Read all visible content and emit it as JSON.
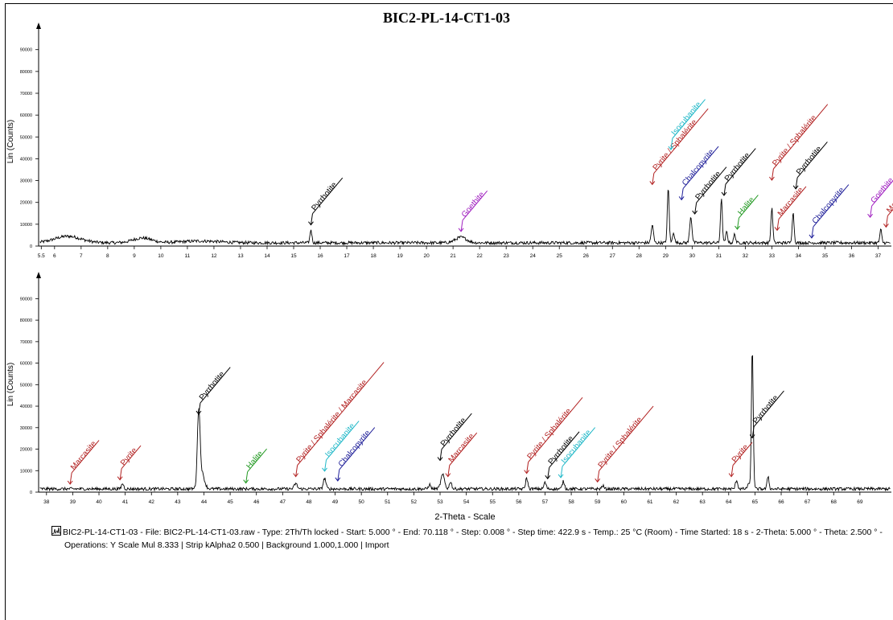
{
  "title": "BIC2-PL-14-CT1-03",
  "caption": {
    "line1": "BIC2-PL-14-CT1-03 - File: BIC2-PL-14-CT1-03.raw - Type: 2Th/Th locked - Start: 5.000 ° - End: 70.118 ° - Step: 0.008 ° - Step time: 422.9 s - Temp.: 25 °C (Room) - Time Started: 18 s - 2-Theta: 5.000 ° - Theta: 2.500 ° -",
    "line2": "Operations: Y Scale Mul  8.333 | Strip kAlpha2 0.500 | Background 1.000,1.000 | Import"
  },
  "chart_data": [
    {
      "type": "line",
      "ylabel": "Lin (Counts)",
      "xlabel": "",
      "ylim": [
        0,
        98000
      ],
      "xlim": [
        5.4,
        37.5
      ],
      "yticks": [
        0,
        10000,
        20000,
        30000,
        40000,
        50000,
        60000,
        70000,
        80000,
        90000
      ],
      "xticks": [
        "5.5",
        "6",
        "7",
        "8",
        "9",
        "10",
        "11",
        "12",
        "13",
        "14",
        "15",
        "16",
        "17",
        "18",
        "19",
        "20",
        "21",
        "22",
        "23",
        "24",
        "25",
        "26",
        "27",
        "28",
        "29",
        "30",
        "31",
        "32",
        "33",
        "34",
        "35",
        "36",
        "37"
      ],
      "xtick_values": [
        5.5,
        6,
        7,
        8,
        9,
        10,
        11,
        12,
        13,
        14,
        15,
        16,
        17,
        18,
        19,
        20,
        21,
        22,
        23,
        24,
        25,
        26,
        27,
        28,
        29,
        30,
        31,
        32,
        33,
        34,
        35,
        36,
        37
      ],
      "baseline": 1500,
      "humps": [
        [
          6.5,
          3000,
          0.7
        ],
        [
          9.3,
          2200,
          0.5
        ],
        [
          21.3,
          2500,
          0.3
        ],
        [
          11.5,
          800,
          1.0
        ]
      ],
      "peaks": [
        [
          15.65,
          6000,
          0.05
        ],
        [
          28.5,
          8000,
          0.06
        ],
        [
          29.1,
          25000,
          0.05
        ],
        [
          29.3,
          5000,
          0.05
        ],
        [
          29.95,
          12000,
          0.06
        ],
        [
          31.1,
          20000,
          0.05
        ],
        [
          31.3,
          5000,
          0.05
        ],
        [
          31.6,
          4000,
          0.05
        ],
        [
          33.0,
          16000,
          0.05
        ],
        [
          33.8,
          14000,
          0.05
        ],
        [
          37.1,
          6000,
          0.05
        ]
      ],
      "annotations": [
        {
          "label": "Pyrrhotite",
          "x": 15.65,
          "y": 7500,
          "color": "#000000"
        },
        {
          "label": "Goethite",
          "x": 21.3,
          "y": 4500,
          "color": "#a020c0"
        },
        {
          "label": "Pyrite / Sphalérite",
          "x": 28.5,
          "y": 26000,
          "color": "#b22222"
        },
        {
          "label": "Isocubanite",
          "x": 29.2,
          "y": 42000,
          "color": "#20b8c8"
        },
        {
          "label": "Chalcopyrite",
          "x": 29.6,
          "y": 19000,
          "color": "#1f1f99"
        },
        {
          "label": "Pyrrhotite",
          "x": 30.1,
          "y": 12500,
          "color": "#000000"
        },
        {
          "label": "Pyrrhotite",
          "x": 31.2,
          "y": 21000,
          "color": "#000000"
        },
        {
          "label": "Halite",
          "x": 31.7,
          "y": 5500,
          "color": "#229922"
        },
        {
          "label": "Pyrite / Sphalérite",
          "x": 33.0,
          "y": 28000,
          "color": "#b22222"
        },
        {
          "label": "Marcasite",
          "x": 33.2,
          "y": 5000,
          "color": "#b22222"
        },
        {
          "label": "Pyrrhotite",
          "x": 33.9,
          "y": 24000,
          "color": "#000000"
        },
        {
          "label": "Chalcopyrite",
          "x": 34.5,
          "y": 1500,
          "color": "#1f1f99"
        },
        {
          "label": "Goethite",
          "x": 36.7,
          "y": 11000,
          "color": "#a020c0"
        },
        {
          "label": "Marcasite",
          "x": 37.3,
          "y": 6500,
          "color": "#b22222"
        }
      ]
    },
    {
      "type": "line",
      "ylabel": "Lin (Counts)",
      "xlabel": "2-Theta - Scale",
      "ylim": [
        0,
        98000
      ],
      "xlim": [
        37.7,
        70.2
      ],
      "yticks": [
        0,
        10000,
        20000,
        30000,
        40000,
        50000,
        60000,
        70000,
        80000,
        90000
      ],
      "xticks": [
        "38",
        "39",
        "40",
        "41",
        "42",
        "43",
        "44",
        "45",
        "46",
        "47",
        "48",
        "49",
        "50",
        "51",
        "52",
        "53",
        "54",
        "55",
        "56",
        "57",
        "58",
        "59",
        "60",
        "61",
        "62",
        "63",
        "64",
        "65",
        "66",
        "67",
        "68",
        "69"
      ],
      "xtick_values": [
        38,
        39,
        40,
        41,
        42,
        43,
        44,
        45,
        46,
        47,
        48,
        49,
        50,
        51,
        52,
        53,
        54,
        55,
        56,
        57,
        58,
        59,
        60,
        61,
        62,
        63,
        64,
        65,
        66,
        67,
        68,
        69
      ],
      "baseline": 1500,
      "humps": [],
      "peaks": [
        [
          40.9,
          2500,
          0.06
        ],
        [
          43.8,
          33000,
          0.07
        ],
        [
          43.9,
          8000,
          0.15
        ],
        [
          47.5,
          2500,
          0.08
        ],
        [
          48.6,
          5000,
          0.07
        ],
        [
          52.6,
          2000,
          0.06
        ],
        [
          53.1,
          6500,
          0.1
        ],
        [
          53.4,
          3500,
          0.06
        ],
        [
          56.3,
          5000,
          0.06
        ],
        [
          57.0,
          3000,
          0.06
        ],
        [
          57.7,
          3500,
          0.06
        ],
        [
          59.2,
          1500,
          0.06
        ],
        [
          64.3,
          4000,
          0.06
        ],
        [
          64.75,
          2500,
          0.05
        ],
        [
          64.9,
          65000,
          0.05
        ],
        [
          65.5,
          6000,
          0.05
        ]
      ],
      "annotations": [
        {
          "label": "Marcasite",
          "x": 38.9,
          "y": 1500,
          "color": "#b22222"
        },
        {
          "label": "Pyrite",
          "x": 40.8,
          "y": 3500,
          "color": "#b22222"
        },
        {
          "label": "Pyrrhotite",
          "x": 43.8,
          "y": 34000,
          "color": "#000000"
        },
        {
          "label": "Halite",
          "x": 45.6,
          "y": 2000,
          "color": "#229922"
        },
        {
          "label": "Pyrite / Sphalérite / Marcasite",
          "x": 47.5,
          "y": 5000,
          "color": "#b22222"
        },
        {
          "label": "Isocubanite",
          "x": 48.6,
          "y": 7500,
          "color": "#20b8c8"
        },
        {
          "label": "Chalcopyrite",
          "x": 49.1,
          "y": 3000,
          "color": "#1f1f99"
        },
        {
          "label": "Pyrrhotite",
          "x": 53.0,
          "y": 12500,
          "color": "#000000"
        },
        {
          "label": "Marcasite",
          "x": 53.3,
          "y": 5000,
          "color": "#b22222"
        },
        {
          "label": "Pyrite / Sphalérite",
          "x": 56.3,
          "y": 6500,
          "color": "#b22222"
        },
        {
          "label": "Pyrrhotite",
          "x": 57.1,
          "y": 4000,
          "color": "#000000"
        },
        {
          "label": "Isocubanite",
          "x": 57.6,
          "y": 4500,
          "color": "#20b8c8"
        },
        {
          "label": "Pyrite / Sphalérite",
          "x": 59.0,
          "y": 2500,
          "color": "#b22222"
        },
        {
          "label": "Pyrite",
          "x": 64.1,
          "y": 5000,
          "color": "#b22222"
        },
        {
          "label": "Pyrrhotite",
          "x": 64.9,
          "y": 23000,
          "color": "#000000"
        }
      ]
    }
  ]
}
